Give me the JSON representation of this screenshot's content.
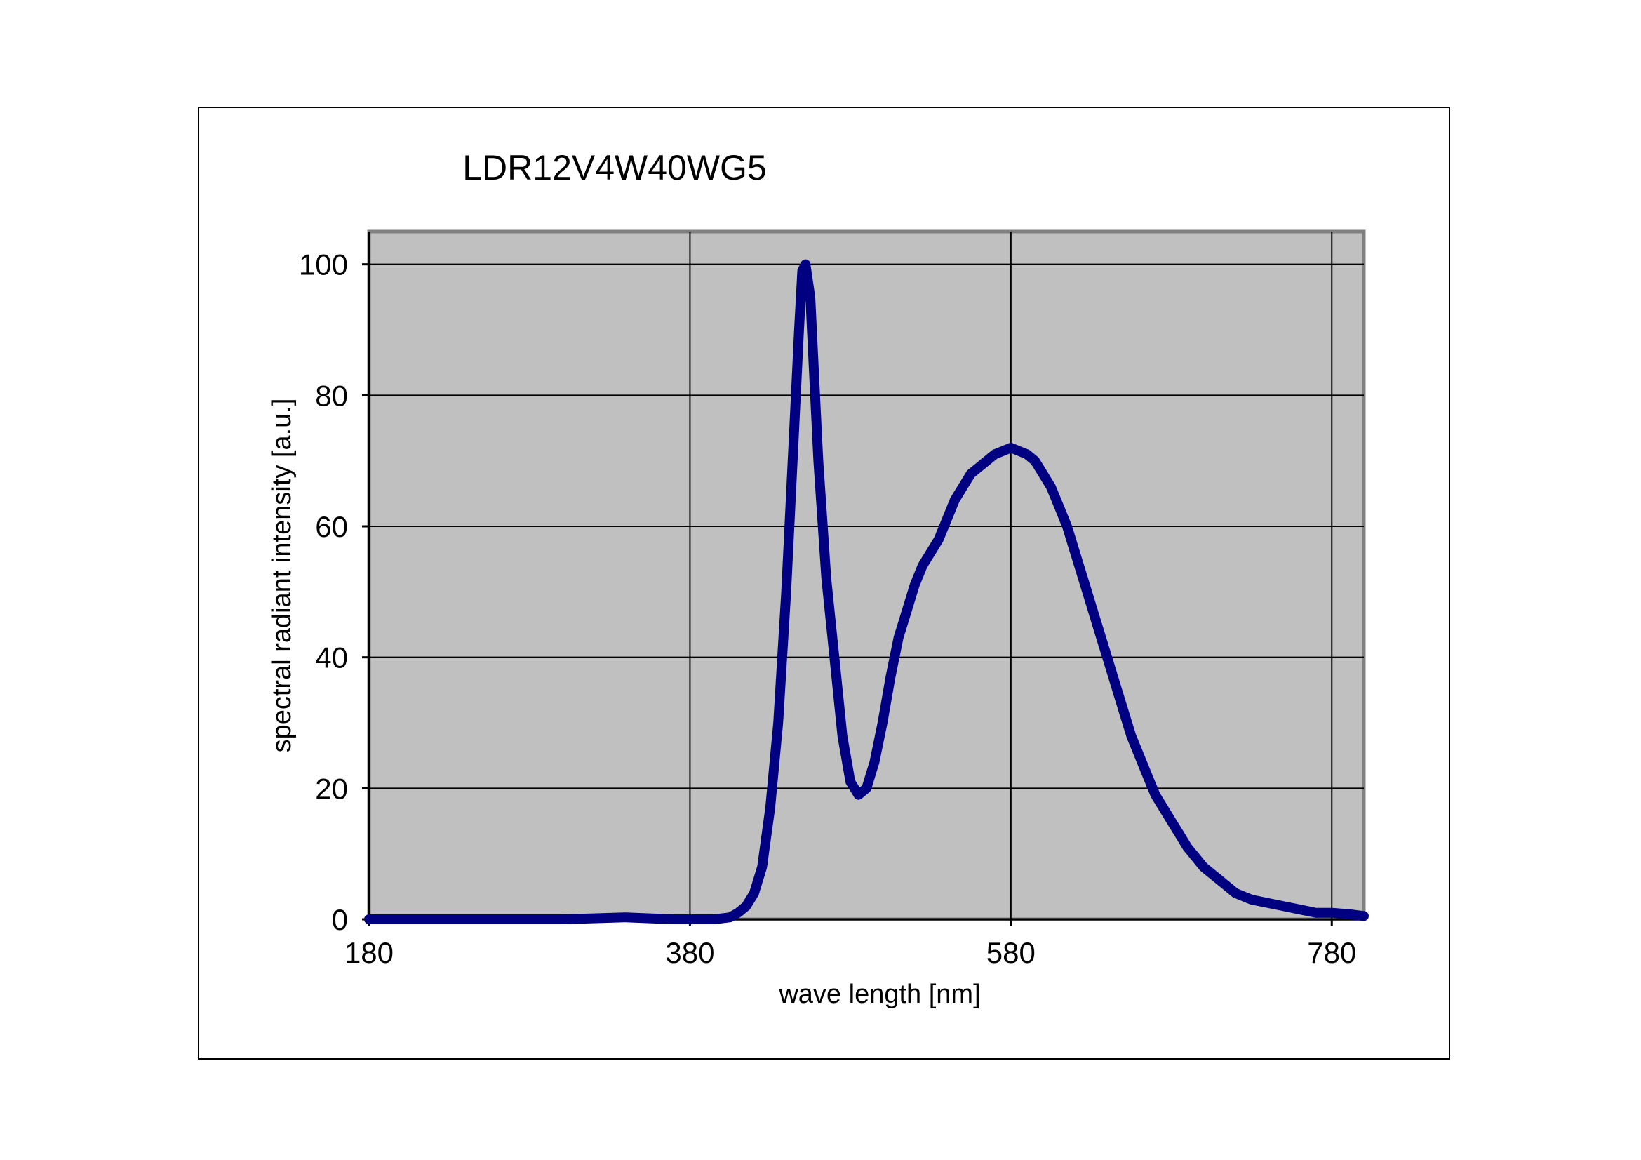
{
  "chart_data": {
    "type": "line",
    "title": "LDR12V4W40WG5",
    "xlabel": "wave length [nm]",
    "ylabel": "spectral radiant intensity [a.u.]",
    "xlim": [
      180,
      800
    ],
    "ylim": [
      0,
      105
    ],
    "xticks": [
      180,
      380,
      580,
      780
    ],
    "yticks": [
      0,
      20,
      40,
      60,
      80,
      100
    ],
    "grid": true,
    "legend": "none",
    "colors": {
      "series": "#000080",
      "plot_bg": "#c0c0c0",
      "grid": "#000000"
    },
    "series": [
      {
        "x": [
          180,
          250,
          300,
          340,
          370,
          395,
          405,
          410,
          415,
          420,
          425,
          430,
          435,
          440,
          445,
          448,
          450,
          452,
          455,
          458,
          460,
          465,
          470,
          475,
          480,
          485,
          490,
          495,
          500,
          505,
          510,
          515,
          520,
          525,
          530,
          535,
          540,
          545,
          550,
          555,
          560,
          565,
          570,
          575,
          580,
          585,
          590,
          595,
          600,
          605,
          610,
          615,
          620,
          625,
          630,
          635,
          640,
          645,
          650,
          655,
          660,
          665,
          670,
          675,
          680,
          685,
          690,
          695,
          700,
          705,
          710,
          715,
          720,
          730,
          740,
          750,
          760,
          770,
          780,
          790,
          800
        ],
        "y": [
          0,
          0,
          0,
          0.3,
          0,
          0,
          0.3,
          1,
          2,
          4,
          8,
          17,
          30,
          50,
          75,
          90,
          99,
          100,
          95,
          80,
          70,
          52,
          40,
          28,
          21,
          19,
          20,
          24,
          30,
          37,
          43,
          47,
          51,
          54,
          56,
          58,
          61,
          64,
          66,
          68,
          69,
          70,
          71,
          71.5,
          72,
          71.5,
          71,
          70,
          68,
          66,
          63,
          60,
          56,
          52,
          48,
          44,
          40,
          36,
          32,
          28,
          25,
          22,
          19,
          17,
          15,
          13,
          11,
          9.5,
          8,
          7,
          6,
          5,
          4,
          3,
          2.5,
          2,
          1.5,
          1,
          1,
          0.8,
          0.5
        ]
      }
    ]
  }
}
